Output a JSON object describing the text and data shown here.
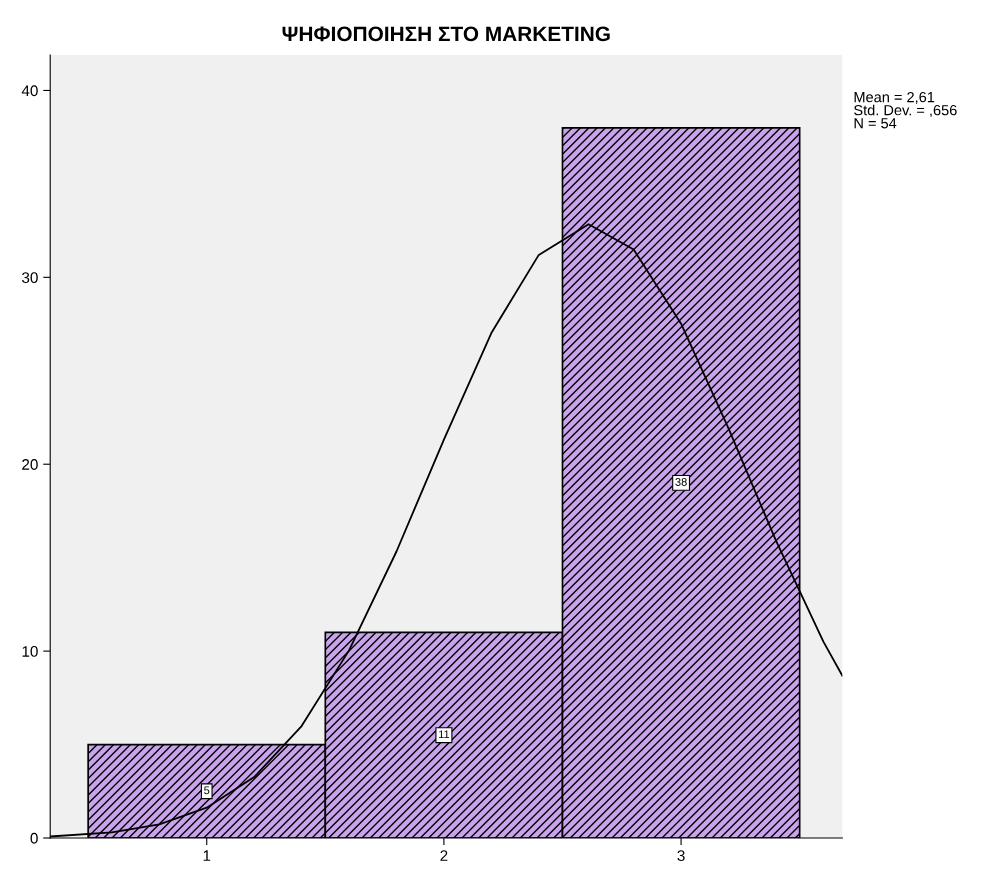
{
  "chart_data": {
    "type": "histogram",
    "title": "ΨΗΦΙΟΠΟΙΗΣΗ ΣΤΟ MARKETING",
    "bins": [
      0.5,
      1.5,
      2.5,
      3.5
    ],
    "values": [
      5,
      11,
      38
    ],
    "color": "#c9a4ec",
    "value_labels": [
      "5",
      "11",
      "38"
    ],
    "series": [
      {
        "type": "line",
        "color": "#000000",
        "x": [
          0.34,
          0.6,
          0.8,
          1.0,
          1.2,
          1.4,
          1.6,
          1.8,
          2.0,
          2.2,
          2.4,
          2.61,
          2.8,
          3.0,
          3.2,
          3.4,
          3.6,
          3.68
        ],
        "values": [
          0.08,
          0.3,
          0.73,
          1.62,
          3.26,
          5.99,
          10.04,
          15.33,
          21.32,
          27.02,
          31.2,
          32.84,
          31.49,
          27.52,
          21.92,
          15.91,
          10.51,
          8.68
        ]
      }
    ],
    "xlim": [
      0.34,
      3.68
    ],
    "xticks": [
      1,
      2,
      3
    ],
    "ylim": [
      0,
      41.9
    ],
    "yticks": [
      0,
      10,
      20,
      30,
      40
    ],
    "annotations": [
      "Mean = 2,61",
      "Std. Dev. = ,656",
      "N = 54"
    ],
    "grid": false
  }
}
